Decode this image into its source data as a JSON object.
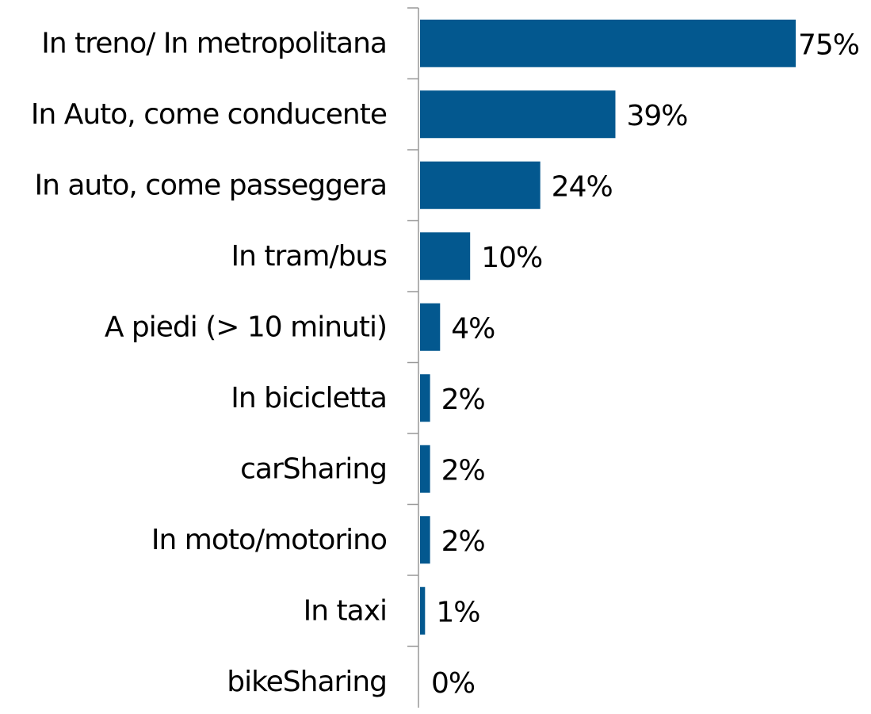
{
  "chart_data": {
    "type": "bar",
    "orientation": "horizontal",
    "categories": [
      "In treno/ In metropolitana",
      "In Auto,  come conducente",
      "In auto,  come passeggera",
      "In tram/bus",
      "A piedi (>   10  minuti)",
      "In bicicletta",
      "carSharing",
      "In moto/motorino",
      "In taxi",
      "bikeSharing"
    ],
    "values": [
      75,
      39,
      24,
      10,
      4,
      2,
      2,
      2,
      1,
      0
    ],
    "value_labels": [
      "75%",
      "39%",
      "24%",
      "10%",
      "4%",
      "2%",
      "2%",
      "2%",
      "1%",
      "0%"
    ],
    "color": "#03588f"
  }
}
